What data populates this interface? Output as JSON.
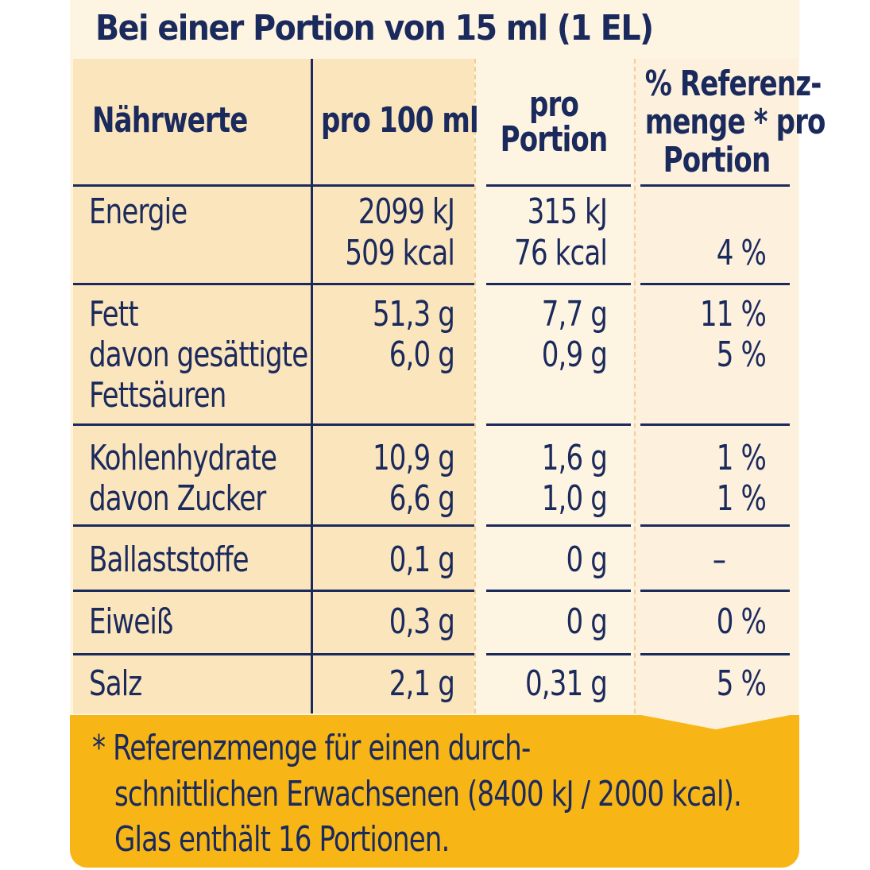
{
  "title": "Bei einer Portion von 15 ml (1 EL)",
  "headers": {
    "naehrwerte": "Nährwerte",
    "pro100": "pro 100 ml",
    "proPortion": [
      "pro",
      "Portion"
    ],
    "referenz": [
      "% Referenz-",
      "menge * pro",
      "Portion"
    ]
  },
  "rows": {
    "energie": {
      "label": "Energie",
      "p100": [
        "2099 kJ",
        "509 kcal"
      ],
      "portion": [
        "315 kJ",
        "76 kcal"
      ],
      "ref": "4 %"
    },
    "fett": {
      "label": [
        "Fett",
        "davon gesättigte",
        "Fettsäuren"
      ],
      "p100": [
        "51,3 g",
        "6,0 g"
      ],
      "portion": [
        "7,7 g",
        "0,9 g"
      ],
      "ref": [
        "11 %",
        "5 %"
      ]
    },
    "kohlenhydrate": {
      "label": [
        "Kohlenhydrate",
        "davon Zucker"
      ],
      "p100": [
        "10,9 g",
        "6,6 g"
      ],
      "portion": [
        "1,6 g",
        "1,0 g"
      ],
      "ref": [
        "1 %",
        "1 %"
      ]
    },
    "ballaststoffe": {
      "label": "Ballaststoffe",
      "p100": "0,1 g",
      "portion": "0 g",
      "ref": "–"
    },
    "eiweiss": {
      "label": "Eiweiß",
      "p100": "0,3 g",
      "portion": "0 g",
      "ref": "0 %"
    },
    "salz": {
      "label": "Salz",
      "p100": "2,1 g",
      "portion": "0,31 g",
      "ref": "5 %"
    }
  },
  "footnote": [
    "* Referenzmenge für einen durch-",
    "schnittlichen Erwachsenen (8400 kJ / 2000 kcal).",
    "Glas enthält 16 Portionen."
  ],
  "colors": {
    "text": "#1b2a5c",
    "panel": "#fdf4e2",
    "highlight": "#fbe5bd",
    "footer": "#f7b616"
  }
}
